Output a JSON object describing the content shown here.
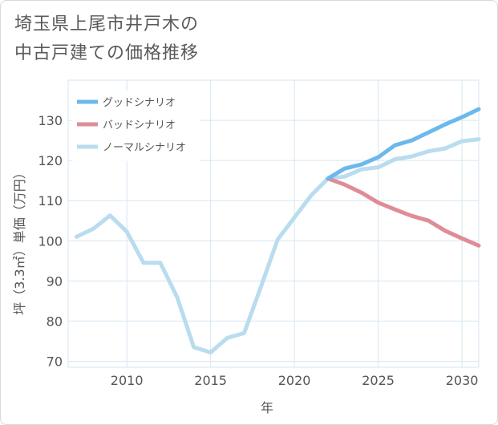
{
  "title_lines": [
    "埼玉県上尾市井戸木の",
    "中古戸建ての価格推移"
  ],
  "chart_data": {
    "type": "line",
    "title": "埼玉県上尾市井戸木の中古戸建ての価格推移",
    "xlabel": "年",
    "ylabel": "坪（3.3㎡）単価（万円）",
    "xlim": [
      2006.5,
      2031
    ],
    "ylim": [
      68.5,
      140
    ],
    "x_ticks": [
      2010,
      2015,
      2020,
      2025,
      2030
    ],
    "y_ticks": [
      70,
      80,
      90,
      100,
      110,
      120,
      130
    ],
    "legend_position": "top-left",
    "series": [
      {
        "name": "グッドシナリオ",
        "color": "#6cb8ec",
        "x": [
          2022,
          2023,
          2024,
          2025,
          2026,
          2027,
          2028,
          2029,
          2030,
          2031
        ],
        "values": [
          115.5,
          118,
          119,
          120.8,
          123.8,
          125,
          127,
          129,
          130.8,
          132.8
        ]
      },
      {
        "name": "バッドシナリオ",
        "color": "#de8d98",
        "x": [
          2022,
          2023,
          2024,
          2025,
          2026,
          2027,
          2028,
          2029,
          2030,
          2031
        ],
        "values": [
          115.5,
          114,
          112,
          109.5,
          107.8,
          106.2,
          105,
          102.5,
          100.6,
          98.8
        ]
      },
      {
        "name": "ノーマルシナリオ",
        "color": "#b9dcef",
        "x": [
          2007,
          2008,
          2009,
          2010,
          2011,
          2012,
          2013,
          2014,
          2015,
          2016,
          2017,
          2018,
          2019,
          2020,
          2021,
          2022,
          2023,
          2024,
          2025,
          2026,
          2027,
          2028,
          2029,
          2030,
          2031
        ],
        "values": [
          101,
          103,
          106.3,
          102.3,
          94.5,
          94.5,
          86,
          73.5,
          72.2,
          75.8,
          77,
          88.5,
          100.3,
          105.8,
          111.3,
          115.5,
          116,
          117.8,
          118.3,
          120.3,
          121,
          122.3,
          123,
          124.8,
          125.3
        ]
      }
    ]
  }
}
